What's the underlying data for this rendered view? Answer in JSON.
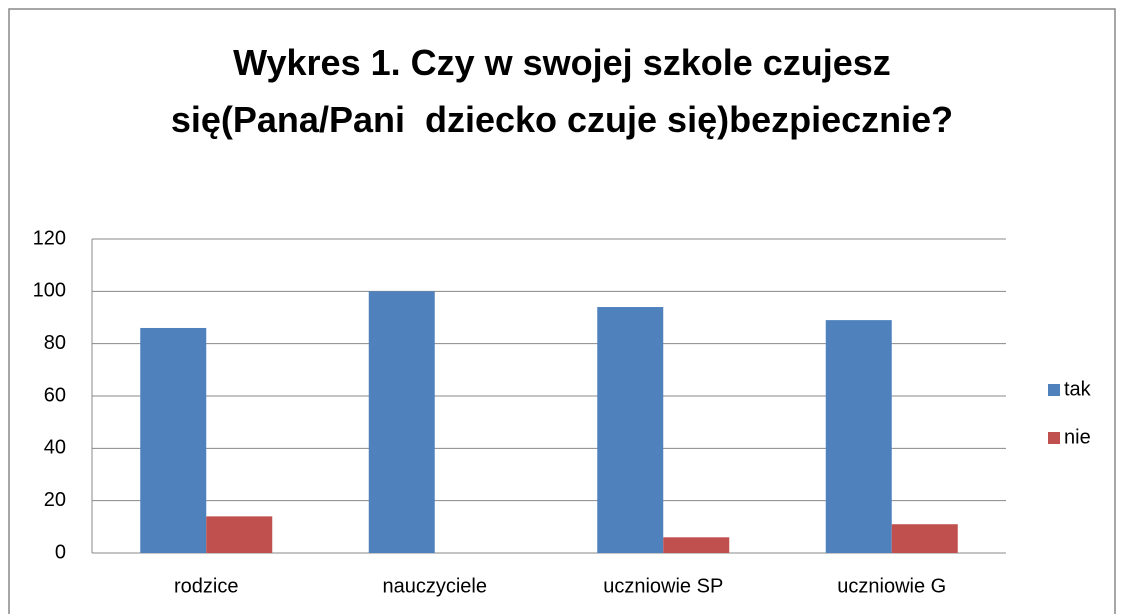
{
  "chart_data": {
    "type": "bar",
    "title": "Wykres 1. Czy w swojej szkole czujesz się(Pana/Pani  dziecko czuje się)bezpiecznie?",
    "categories": [
      "rodzice",
      "nauczyciele",
      "uczniowie SP",
      "uczniowie G"
    ],
    "series": [
      {
        "name": "tak",
        "color": "#4f81bd",
        "values": [
          86,
          100,
          94,
          89
        ]
      },
      {
        "name": "nie",
        "color": "#c0504d",
        "values": [
          14,
          0,
          6,
          11
        ]
      }
    ],
    "ylim": [
      0,
      120
    ],
    "yticks": [
      0,
      20,
      40,
      60,
      80,
      100,
      120
    ],
    "grid": true,
    "legend": "right"
  }
}
